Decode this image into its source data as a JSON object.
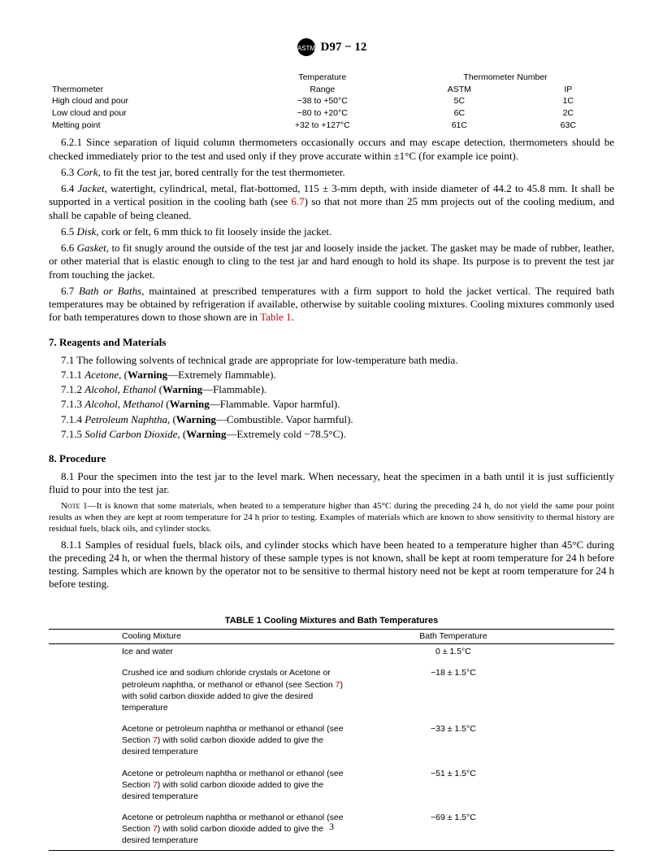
{
  "header": {
    "doc_title": "D97 − 12"
  },
  "thermo_table": {
    "headers": {
      "temp": "Temperature",
      "thermo_num": "Thermometer Number",
      "thermometer": "Thermometer",
      "range": "Range",
      "astm": "ASTM",
      "ip": "IP"
    },
    "rows": [
      {
        "name": "High cloud and pour",
        "range": "−38 to +50°C",
        "astm": "5C",
        "ip": "1C"
      },
      {
        "name": "Low cloud and pour",
        "range": "−80 to +20°C",
        "astm": "6C",
        "ip": "2C"
      },
      {
        "name": "Melting point",
        "range": "+32 to +127°C",
        "astm": "61C",
        "ip": "63C"
      }
    ]
  },
  "paras": {
    "p621": "6.2.1 Since separation of liquid column thermometers occasionally occurs and may escape detection, thermometers should be checked immediately prior to the test and used only if they prove accurate within ±1°C (for example ice point).",
    "p63_pre": "6.3 ",
    "p63_em": "Cork,",
    "p63_post": " to fit the test jar, bored centrally for the test thermometer.",
    "p64_pre": "6.4 ",
    "p64_em": "Jacket,",
    "p64_post1": " watertight, cylindrical, metal, flat-bottomed, 115 ± 3-mm depth, with inside diameter of 44.2 to 45.8 mm. It shall be supported in a vertical position in the cooling bath (see ",
    "p64_link": "6.7",
    "p64_post2": ") so that not more than 25 mm projects out of the cooling medium, and shall be capable of being cleaned.",
    "p65_pre": "6.5 ",
    "p65_em": "Disk,",
    "p65_post": " cork or felt, 6 mm thick to fit loosely inside the jacket.",
    "p66_pre": "6.6 ",
    "p66_em": "Gasket,",
    "p66_post": " to fit snugly around the outside of the test jar and loosely inside the jacket. The gasket may be made of rubber, leather, or other material that is elastic enough to cling to the test jar and hard enough to hold its shape. Its purpose is to prevent the test jar from touching the jacket.",
    "p67_pre": "6.7 ",
    "p67_em": "Bath or Baths,",
    "p67_post1": " maintained at prescribed temperatures with a firm support to hold the jacket vertical. The required bath temperatures may be obtained by refrigeration if available, otherwise by suitable cooling mixtures. Cooling mixtures commonly used for bath temperatures down to those shown are in ",
    "p67_link": "Table 1",
    "p67_post2": "."
  },
  "section7": {
    "heading": "7. Reagents and Materials",
    "p71": "7.1 The following solvents of technical grade are appropriate for low-temperature bath media.",
    "items": [
      {
        "num": "7.1.1 ",
        "name": "Acetone,",
        "warn_pre": " (",
        "warn": "Warning",
        "warn_post": "—Extremely flammable)."
      },
      {
        "num": "7.1.2 ",
        "name": "Alcohol, Ethanol",
        "warn_pre": " (",
        "warn": "Warning",
        "warn_post": "—Flammable)."
      },
      {
        "num": "7.1.3 ",
        "name": "Alcohol, Methanol",
        "warn_pre": " (",
        "warn": "Warning",
        "warn_post": "—Flammable. Vapor harmful)."
      },
      {
        "num": "7.1.4 ",
        "name": "Petroleum Naphtha,",
        "warn_pre": " (",
        "warn": "Warning",
        "warn_post": "—Combustible. Vapor harmful)."
      },
      {
        "num": "7.1.5 ",
        "name": "Solid Carbon Dioxide,",
        "warn_pre": " (",
        "warn": "Warning",
        "warn_post": "—Extremely cold −78.5°C)."
      }
    ]
  },
  "section8": {
    "heading": "8. Procedure",
    "p81": "8.1 Pour the specimen into the test jar to the level mark. When necessary, heat the specimen in a bath until it is just sufficiently fluid to pour into the test jar.",
    "note_label": "Note",
    "note_num": " 1—",
    "note_text": "It is known that some materials, when heated to a temperature higher than 45°C during the preceding 24 h, do not yield the same pour point results as when they are kept at room temperature for 24 h prior to testing. Examples of materials which are known to show sensitivity to thermal history are residual fuels, black oils, and cylinder stocks.",
    "p811": "8.1.1 Samples of residual fuels, black oils, and cylinder stocks which have been heated to a temperature higher than 45°C during the preceding 24 h, or when the thermal history of these sample types is not known, shall be kept at room temperature for 24 h before testing. Samples which are known by the operator not to be sensitive to thermal history need not be kept at room temperature for 24 h before testing."
  },
  "table1": {
    "title": "TABLE 1 Cooling Mixtures and Bath Temperatures",
    "head_mixture": "Cooling Mixture",
    "head_temp": "Bath Temperature",
    "rows": [
      {
        "mixture_pre": "Ice and water",
        "link": "",
        "mixture_post": "",
        "temp": "0 ± 1.5°C"
      },
      {
        "mixture_pre": "Crushed ice and sodium chloride crystals or Acetone or petroleum naphtha, or methanol or ethanol (see Section ",
        "link": "7",
        "mixture_post": ") with solid carbon dioxide added to give the desired temperature",
        "temp": "−18 ± 1.5°C"
      },
      {
        "mixture_pre": "Acetone or petroleum naphtha or methanol or ethanol (see Section ",
        "link": "7",
        "mixture_post": ") with solid carbon dioxide added to give the desired temperature",
        "temp": "−33 ± 1.5°C"
      },
      {
        "mixture_pre": "Acetone or petroleum naphtha or methanol or ethanol (see Section ",
        "link": "7",
        "mixture_post": ") with solid carbon dioxide added to give the desired temperature",
        "temp": "−51 ± 1.5°C"
      },
      {
        "mixture_pre": "Acetone or petroleum naphtha or methanol or ethanol (see Section ",
        "link": "7",
        "mixture_post": ") with solid carbon dioxide added to give the desired temperature",
        "temp": "−69 ± 1.5°C"
      }
    ]
  },
  "page_number": "3",
  "colors": {
    "link": "#cc0000"
  }
}
